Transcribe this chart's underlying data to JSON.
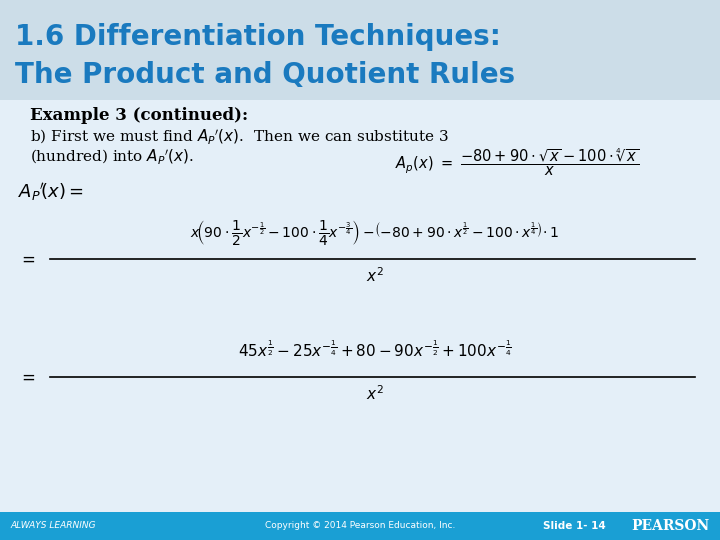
{
  "title_line1": "1.6 Differentiation Techniques:",
  "title_line2": "The Product and Quotient Rules",
  "title_color": "#1a7abf",
  "title_fontsize": 20,
  "footer_bg": "#1a9fd4",
  "footer_text_left": "ALWAYS LEARNING",
  "footer_text_center": "Copyright © 2014 Pearson Education, Inc.",
  "footer_text_slide": "Slide 1- 14",
  "footer_text_right": "PEARSON",
  "footer_color": "#ffffff",
  "example_bold": "Example 3 (continued):",
  "bg_main": "#dce8f0",
  "bg_title": "#cce0ef",
  "bg_content": "#e8f2f8"
}
